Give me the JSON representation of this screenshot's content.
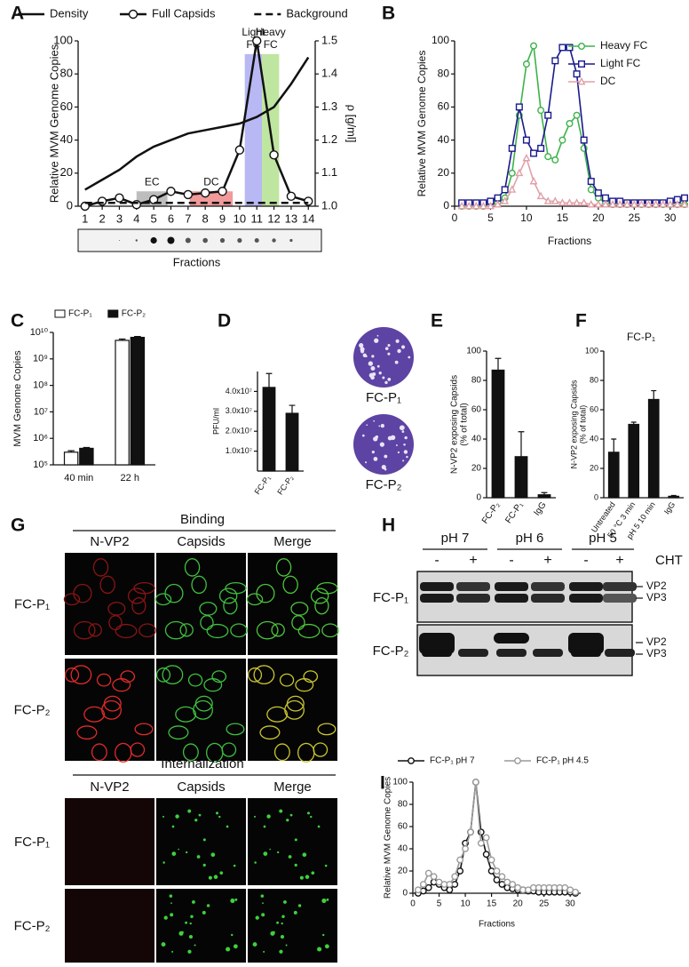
{
  "panel_labels": [
    "A",
    "B",
    "C",
    "D",
    "E",
    "F",
    "G",
    "H",
    "I"
  ],
  "chart_data": [
    {
      "type": "line",
      "x": [
        1,
        2,
        3,
        4,
        5,
        6,
        7,
        8,
        9,
        10,
        11,
        12,
        13,
        14
      ],
      "xlim": [
        0.6,
        14.4
      ],
      "xticks": [
        1,
        2,
        3,
        4,
        5,
        6,
        7,
        8,
        9,
        10,
        11,
        12,
        13,
        14
      ],
      "ylim": [
        0,
        100
      ],
      "yticks": [
        0,
        20,
        40,
        60,
        80,
        100
      ],
      "y2lim": [
        1.0,
        1.5
      ],
      "y2ticks": [
        {
          "value": 1.0,
          "label": "1.0"
        },
        1.1,
        1.2,
        1.3,
        1.4,
        1.5
      ],
      "ylabel": "Relative MVM Genome Copies",
      "y2label": "ρ [g/ml]",
      "xlabel": "Fractions",
      "legend": "top",
      "series": [
        {
          "name": "Density",
          "color": "#111111",
          "axis": "y2",
          "values": [
            1.05,
            1.08,
            1.11,
            1.15,
            1.18,
            1.2,
            1.22,
            1.23,
            1.24,
            1.25,
            1.27,
            1.3,
            1.37,
            1.45
          ]
        },
        {
          "name": "Full Capsids",
          "color": "#111111",
          "marker": "circle",
          "values": [
            0,
            3,
            5,
            1,
            4,
            9,
            7,
            8,
            9,
            34,
            100,
            31,
            6,
            3
          ]
        },
        {
          "name": "Background",
          "color": "#111111",
          "dash": true,
          "values": [
            2,
            2,
            2,
            2,
            2,
            2,
            2,
            2,
            2,
            2,
            2,
            2,
            2,
            2
          ]
        }
      ],
      "regions": [
        {
          "label": [
            "EC"
          ],
          "x": [
            4,
            5.8
          ],
          "y": [
            0,
            9
          ],
          "color": "#bdbdbd"
        },
        {
          "label": [
            "DC"
          ],
          "x": [
            7.1,
            9.6
          ],
          "y": [
            0,
            9
          ],
          "color": "#f19a9a"
        },
        {
          "label": [
            "Light",
            "FC"
          ],
          "x": [
            10.3,
            11.3
          ],
          "y": [
            0,
            92
          ],
          "color": "#b8b8f4"
        },
        {
          "label": [
            "Heavy",
            "FC"
          ],
          "x": [
            11.3,
            12.3
          ],
          "y": [
            0,
            92
          ],
          "color": "#bfe6a0"
        }
      ]
    },
    {
      "type": "line",
      "x": [
        1,
        2,
        3,
        4,
        5,
        6,
        7,
        8,
        9,
        10,
        11,
        12,
        13,
        14,
        15,
        16,
        17,
        18,
        19,
        20,
        21,
        22,
        23,
        24,
        25,
        26,
        27,
        28,
        29,
        30,
        31,
        32
      ],
      "xlim": [
        0,
        32
      ],
      "xticks": [
        0,
        5,
        10,
        15,
        20,
        25,
        30
      ],
      "ylim": [
        0,
        100
      ],
      "yticks": [
        0,
        20,
        40,
        60,
        80,
        100
      ],
      "ylabel": "Relative MVM Genome Copies",
      "xlabel": "Fractions",
      "legend": "upper right",
      "series": [
        {
          "name": "Heavy FC",
          "color": "#3cb34a",
          "marker": "circle",
          "values": [
            0,
            0,
            0,
            0,
            1,
            2,
            5,
            20,
            55,
            86,
            97,
            58,
            30,
            28,
            40,
            50,
            55,
            35,
            10,
            5,
            2,
            1,
            1,
            1,
            1,
            1,
            1,
            1,
            1,
            1,
            1,
            1
          ]
        },
        {
          "name": "Light FC",
          "color": "#1a1a8c",
          "marker": "square",
          "values": [
            2,
            2,
            2,
            2,
            3,
            5,
            10,
            35,
            60,
            40,
            32,
            35,
            55,
            88,
            96,
            96,
            80,
            40,
            15,
            8,
            5,
            3,
            3,
            2,
            2,
            2,
            2,
            2,
            2,
            3,
            4,
            5
          ]
        },
        {
          "name": "DC",
          "color": "#e0a0a8",
          "marker": "triangle",
          "values": [
            0,
            0,
            0,
            0,
            0,
            1,
            3,
            10,
            20,
            29,
            15,
            6,
            3,
            3,
            2,
            2,
            2,
            2,
            1,
            1,
            1,
            1,
            1,
            1,
            1,
            1,
            1,
            1,
            1,
            1,
            1,
            1
          ]
        }
      ]
    },
    {
      "type": "bar",
      "categories": [
        "40 min",
        "22 h"
      ],
      "ylog": true,
      "ylim": [
        100000,
        10000000000
      ],
      "yticks": [
        {
          "value": 100000,
          "label": "10⁵"
        },
        {
          "value": 1000000,
          "label": "10⁶"
        },
        {
          "value": 10000000,
          "label": "10⁷"
        },
        {
          "value": 100000000,
          "label": "10⁸"
        },
        {
          "value": 1000000000,
          "label": "10⁹"
        },
        {
          "value": 10000000000,
          "label": "10¹⁰"
        }
      ],
      "ylabel": "MVM Genome Copies",
      "legend": "top",
      "series": [
        {
          "name": "FC-P₁",
          "color": "#ffffff",
          "values": [
            300000,
            5000000000
          ],
          "errors": [
            40000,
            600000000
          ]
        },
        {
          "name": "FC-P₂",
          "color": "#111111",
          "values": [
            420000,
            6500000000
          ],
          "errors": [
            30000,
            500000000
          ]
        }
      ]
    },
    {
      "type": "bar",
      "categories": [
        "FC-P₁",
        "FC-P₂"
      ],
      "rotate_labels": true,
      "values": [
        42000000,
        29000000
      ],
      "errors": [
        7000000,
        4000000
      ],
      "color": "#111111",
      "ylim": [
        0,
        50000000
      ],
      "yticks": [
        {
          "value": 10000000,
          "label": "1.0x10⁷"
        },
        {
          "value": 20000000,
          "label": "2.0x10⁷"
        },
        {
          "value": 30000000,
          "label": "3.0x10⁷"
        },
        {
          "value": 40000000,
          "label": "4.0x10⁷"
        }
      ],
      "ylabel": "PFU/ml"
    },
    {
      "type": "bar",
      "categories": [
        "FC-P₂",
        "FC-P₁",
        "IgG"
      ],
      "rotate_labels": true,
      "values": [
        87,
        28,
        2
      ],
      "errors": [
        8,
        17,
        1.5
      ],
      "color": "#111111",
      "ylim": [
        0,
        100
      ],
      "yticks": [
        0,
        20,
        40,
        60,
        80,
        100
      ],
      "ylabel": [
        "N-VP2 exposing Capsids",
        "(% of total)"
      ]
    },
    {
      "type": "bar",
      "title": "FC-P₁",
      "categories": [
        "Untreated",
        "50 °C 3 min",
        "pH 5 10 min",
        "IgG"
      ],
      "rotate_labels": true,
      "values": [
        31,
        50,
        67,
        1
      ],
      "errors": [
        9,
        1.5,
        6,
        0.5
      ],
      "color": "#111111",
      "ylim": [
        0,
        100
      ],
      "yticks": [
        0,
        20,
        40,
        60,
        80,
        100
      ],
      "ylabel": [
        "N-VP2 exposing Capsids",
        "(% of total)"
      ]
    },
    {
      "type": "line",
      "x": [
        1,
        2,
        3,
        4,
        5,
        6,
        7,
        8,
        9,
        10,
        11,
        12,
        13,
        14,
        15,
        16,
        17,
        18,
        19,
        20,
        21,
        22,
        23,
        24,
        25,
        26,
        27,
        28,
        29,
        30,
        31
      ],
      "xlim": [
        0,
        32
      ],
      "xticks": [
        0,
        5,
        10,
        15,
        20,
        25,
        30
      ],
      "ylim": [
        0,
        100
      ],
      "yticks": [
        0,
        20,
        40,
        60,
        80,
        100
      ],
      "ylabel": "Relative MVM Genome Copies",
      "xlabel": "Fractions",
      "legend": "top",
      "series": [
        {
          "name": "FC-P₁ pH 7",
          "color": "#111111",
          "marker": "circle",
          "values": [
            0,
            2,
            5,
            10,
            8,
            5,
            3,
            8,
            20,
            45,
            55,
            100,
            55,
            35,
            20,
            12,
            8,
            5,
            4,
            3,
            3,
            2,
            2,
            1,
            1,
            1,
            1,
            1,
            1,
            1,
            0
          ]
        },
        {
          "name": "FC-P₁ pH 4.5",
          "color": "#9a9a9a",
          "marker": "circle",
          "values": [
            3,
            8,
            18,
            15,
            10,
            8,
            8,
            15,
            30,
            40,
            55,
            100,
            45,
            50,
            30,
            20,
            15,
            10,
            8,
            5,
            3,
            3,
            5,
            5,
            5,
            5,
            5,
            5,
            5,
            3,
            1
          ]
        }
      ]
    }
  ],
  "plaque_labels": [
    "FC-P₁",
    "FC-P₂"
  ],
  "panel_g": {
    "sections": [
      {
        "title": "Binding",
        "columns": [
          "N-VP2",
          "Capsids",
          "Merge"
        ],
        "rows": [
          "FC-P₁",
          "FC-P₂"
        ]
      },
      {
        "title": "Internalization",
        "columns": [
          "N-VP2",
          "Capsids",
          "Merge"
        ],
        "rows": [
          "FC-P₁",
          "FC-P₂"
        ]
      }
    ]
  },
  "panel_h": {
    "conditions": [
      "pH 7",
      "pH 6",
      "pH 5"
    ],
    "lanes": [
      "-",
      "+",
      "-",
      "+",
      "-",
      "+"
    ],
    "treatment": "CHT",
    "rows": [
      "FC-P₁",
      "FC-P₂"
    ],
    "bands": [
      "VP2",
      "VP3"
    ]
  }
}
